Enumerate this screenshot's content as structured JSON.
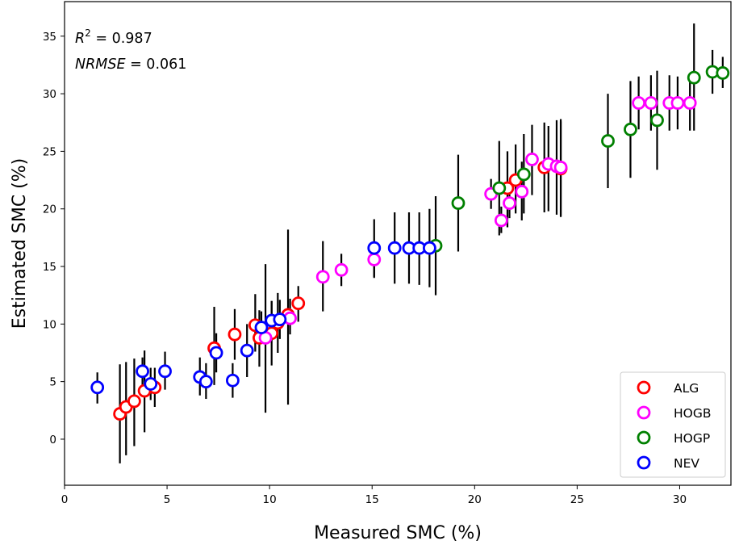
{
  "chart_data": {
    "type": "scatter",
    "title": "",
    "xlabel": "Measured SMC (%)",
    "ylabel": "Estimated SMC (%)",
    "xlim": [
      0,
      32.5
    ],
    "ylim": [
      -4,
      38
    ],
    "xticks": [
      0,
      5,
      10,
      15,
      20,
      25,
      30
    ],
    "yticks": [
      0,
      5,
      10,
      15,
      20,
      25,
      30,
      35
    ],
    "grid": false,
    "legend_position": "lower-right",
    "annotations": [
      {
        "prefix": "R",
        "sup": "2",
        "value": " = 0.987"
      },
      {
        "prefix": "NRMSE",
        "sup": "",
        "value": " = 0.061"
      }
    ],
    "series": [
      {
        "name": "ALG",
        "color": "#ff0000",
        "points": [
          {
            "x": 2.7,
            "y": 2.2,
            "err_low": -2.1,
            "err_high": 6.5
          },
          {
            "x": 3.0,
            "y": 2.8,
            "err_low": -1.4,
            "err_high": 6.7
          },
          {
            "x": 3.4,
            "y": 3.3,
            "err_low": -0.6,
            "err_high": 7.0
          },
          {
            "x": 3.9,
            "y": 4.2,
            "err_low": 0.6,
            "err_high": 7.7
          },
          {
            "x": 4.4,
            "y": 4.5,
            "err_low": 2.8,
            "err_high": 6.2
          },
          {
            "x": 7.3,
            "y": 7.9,
            "err_low": 4.7,
            "err_high": 11.5
          },
          {
            "x": 8.3,
            "y": 9.1,
            "err_low": 6.9,
            "err_high": 11.3
          },
          {
            "x": 9.3,
            "y": 9.9,
            "err_low": 7.6,
            "err_high": 12.6
          },
          {
            "x": 9.5,
            "y": 8.8,
            "err_low": 6.3,
            "err_high": 11.2
          },
          {
            "x": 10.1,
            "y": 9.2,
            "err_low": 6.4,
            "err_high": 12.0
          },
          {
            "x": 10.4,
            "y": 10.1,
            "err_low": 7.5,
            "err_high": 12.7
          },
          {
            "x": 10.9,
            "y": 10.8,
            "err_low": 3.0,
            "err_high": 18.2
          },
          {
            "x": 11.4,
            "y": 11.8,
            "err_low": 10.2,
            "err_high": 13.3
          },
          {
            "x": 21.6,
            "y": 21.8,
            "err_low": 18.4,
            "err_high": 25.0
          },
          {
            "x": 22.0,
            "y": 22.5,
            "err_low": 19.6,
            "err_high": 25.6
          },
          {
            "x": 23.4,
            "y": 23.6,
            "err_low": 19.7,
            "err_high": 27.5
          },
          {
            "x": 24.2,
            "y": 23.5,
            "err_low": 19.3,
            "err_high": 27.8
          }
        ]
      },
      {
        "name": "HOGB",
        "color": "#ff00ff",
        "points": [
          {
            "x": 9.8,
            "y": 8.8,
            "err_low": 2.3,
            "err_high": 15.2
          },
          {
            "x": 11.0,
            "y": 10.5,
            "err_low": 9.1,
            "err_high": 12.2
          },
          {
            "x": 12.6,
            "y": 14.1,
            "err_low": 11.1,
            "err_high": 17.2
          },
          {
            "x": 13.5,
            "y": 14.7,
            "err_low": 13.3,
            "err_high": 16.1
          },
          {
            "x": 15.1,
            "y": 15.6,
            "err_low": 14.1,
            "err_high": 17.0
          },
          {
            "x": 20.8,
            "y": 21.3,
            "err_low": 20.0,
            "err_high": 22.6
          },
          {
            "x": 21.3,
            "y": 19.0,
            "err_low": 17.9,
            "err_high": 20.2
          },
          {
            "x": 21.7,
            "y": 20.5,
            "err_low": 19.2,
            "err_high": 21.8
          },
          {
            "x": 22.3,
            "y": 21.5,
            "err_low": 19.0,
            "err_high": 24.1
          },
          {
            "x": 22.8,
            "y": 24.3,
            "err_low": 21.2,
            "err_high": 27.3
          },
          {
            "x": 23.6,
            "y": 23.9,
            "err_low": 19.8,
            "err_high": 27.2
          },
          {
            "x": 24.0,
            "y": 23.7,
            "err_low": 19.5,
            "err_high": 27.7
          },
          {
            "x": 24.2,
            "y": 23.6,
            "err_low": 19.4,
            "err_high": 27.6
          },
          {
            "x": 28.0,
            "y": 29.2,
            "err_low": 26.9,
            "err_high": 31.5
          },
          {
            "x": 28.6,
            "y": 29.2,
            "err_low": 26.8,
            "err_high": 31.6
          },
          {
            "x": 29.5,
            "y": 29.2,
            "err_low": 26.8,
            "err_high": 31.6
          },
          {
            "x": 29.9,
            "y": 29.2,
            "err_low": 26.9,
            "err_high": 31.5
          },
          {
            "x": 30.5,
            "y": 29.2,
            "err_low": 26.8,
            "err_high": 31.6
          }
        ]
      },
      {
        "name": "HOGP",
        "color": "#008000",
        "points": [
          {
            "x": 18.1,
            "y": 16.8,
            "err_low": 12.5,
            "err_high": 21.1
          },
          {
            "x": 19.2,
            "y": 20.5,
            "err_low": 16.3,
            "err_high": 24.7
          },
          {
            "x": 21.2,
            "y": 21.8,
            "err_low": 17.7,
            "err_high": 25.9
          },
          {
            "x": 22.4,
            "y": 23.0,
            "err_low": 19.6,
            "err_high": 26.5
          },
          {
            "x": 26.5,
            "y": 25.9,
            "err_low": 21.8,
            "err_high": 30.0
          },
          {
            "x": 27.6,
            "y": 26.9,
            "err_low": 22.7,
            "err_high": 31.1
          },
          {
            "x": 28.9,
            "y": 27.7,
            "err_low": 23.4,
            "err_high": 32.0
          },
          {
            "x": 30.7,
            "y": 31.4,
            "err_low": 26.8,
            "err_high": 36.1
          },
          {
            "x": 31.6,
            "y": 31.9,
            "err_low": 30.0,
            "err_high": 33.8
          },
          {
            "x": 32.1,
            "y": 31.8,
            "err_low": 30.5,
            "err_high": 33.2
          }
        ]
      },
      {
        "name": "NEV",
        "color": "#0000ff",
        "points": [
          {
            "x": 1.6,
            "y": 4.5,
            "err_low": 3.1,
            "err_high": 5.8
          },
          {
            "x": 3.8,
            "y": 5.9,
            "err_low": 3.8,
            "err_high": 7.1
          },
          {
            "x": 4.2,
            "y": 4.8,
            "err_low": 3.4,
            "err_high": 6.2
          },
          {
            "x": 4.9,
            "y": 5.9,
            "err_low": 4.3,
            "err_high": 7.6
          },
          {
            "x": 6.6,
            "y": 5.4,
            "err_low": 3.8,
            "err_high": 7.1
          },
          {
            "x": 6.9,
            "y": 5.0,
            "err_low": 3.5,
            "err_high": 6.6
          },
          {
            "x": 7.4,
            "y": 7.5,
            "err_low": 5.8,
            "err_high": 9.2
          },
          {
            "x": 8.2,
            "y": 5.1,
            "err_low": 3.6,
            "err_high": 6.6
          },
          {
            "x": 8.9,
            "y": 7.7,
            "err_low": 5.4,
            "err_high": 10.0
          },
          {
            "x": 9.6,
            "y": 9.7,
            "err_low": 8.3,
            "err_high": 11.1
          },
          {
            "x": 10.1,
            "y": 10.3,
            "err_low": 8.6,
            "err_high": 12.0
          },
          {
            "x": 10.5,
            "y": 10.4,
            "err_low": 8.7,
            "err_high": 12.1
          },
          {
            "x": 15.1,
            "y": 16.6,
            "err_low": 14.0,
            "err_high": 19.1
          },
          {
            "x": 16.1,
            "y": 16.6,
            "err_low": 13.5,
            "err_high": 19.7
          },
          {
            "x": 16.8,
            "y": 16.6,
            "err_low": 13.5,
            "err_high": 19.7
          },
          {
            "x": 17.3,
            "y": 16.6,
            "err_low": 13.4,
            "err_high": 19.7
          },
          {
            "x": 17.8,
            "y": 16.6,
            "err_low": 13.2,
            "err_high": 20.0
          }
        ]
      }
    ]
  }
}
